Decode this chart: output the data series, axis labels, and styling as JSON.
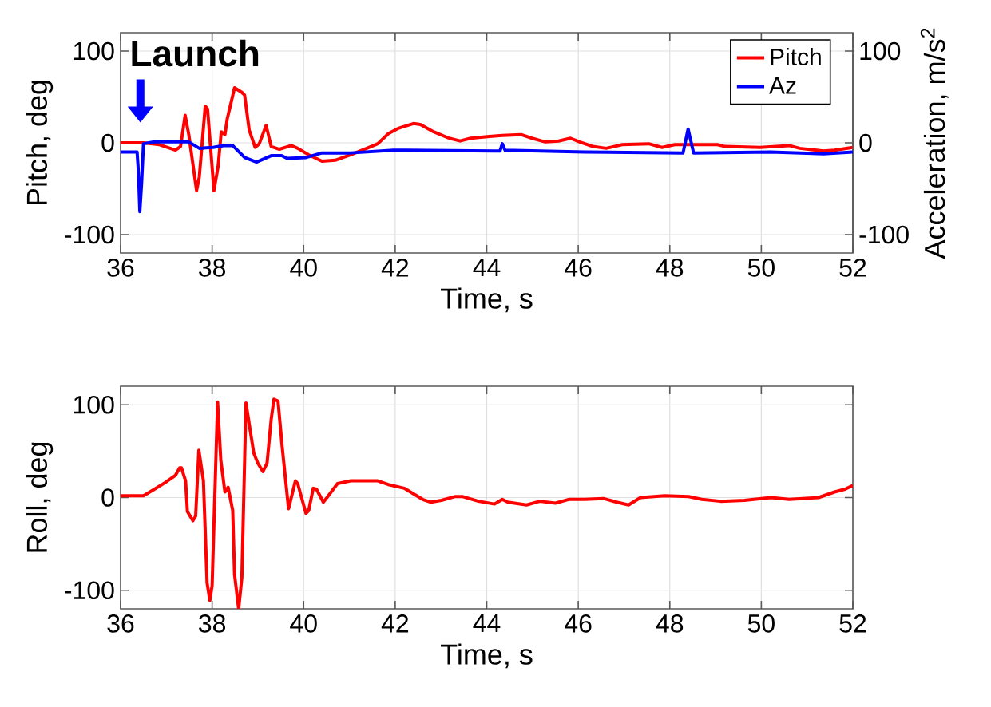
{
  "chart_data": [
    {
      "type": "line",
      "xlabel": "Time, s",
      "ylabel": "Pitch, deg",
      "y2label": "Acceleration, m/s$^{2}$",
      "xlim": [
        36,
        52
      ],
      "xticks": [
        36,
        38,
        40,
        42,
        44,
        46,
        48,
        50,
        52
      ],
      "ylim": [
        -120,
        120
      ],
      "yticks": [
        -100,
        0,
        100
      ],
      "y2lim": [
        -120,
        120
      ],
      "y2ticks": [
        -100,
        0,
        100
      ],
      "grid": true,
      "legend": "top right",
      "annotations": [
        "Launch"
      ],
      "series": [
        {
          "name": "Pitch",
          "color": "#ff0000",
          "x": [
            36,
            36.5,
            36.85,
            37.2,
            37.31,
            37.41,
            37.49,
            37.66,
            37.72,
            37.85,
            37.9,
            38.04,
            38.13,
            38.2,
            38.28,
            38.33,
            38.49,
            38.65,
            38.71,
            38.81,
            38.94,
            39.03,
            39.18,
            39.29,
            39.47,
            39.73,
            39.87,
            40.11,
            40.4,
            40.69,
            41.03,
            41.38,
            41.62,
            41.85,
            42.08,
            42.4,
            42.55,
            42.84,
            43.18,
            43.42,
            43.65,
            44.06,
            44.34,
            44.75,
            44.99,
            45.28,
            45.57,
            45.83,
            46.03,
            46.32,
            46.61,
            46.96,
            47.54,
            47.83,
            48.11,
            49.04,
            49.21,
            49.97,
            50.61,
            50.84,
            51.36,
            51.6,
            52
          ],
          "values": [
            0,
            0,
            -2,
            -8,
            -4,
            30,
            9,
            -52,
            -37,
            40,
            37,
            -52,
            -26,
            12,
            9,
            26,
            60,
            55,
            52,
            14,
            -5,
            -1,
            19,
            -4,
            -7,
            -3,
            -6,
            -13,
            -20,
            -19,
            -13,
            -6,
            -1,
            10,
            16,
            21,
            20,
            12,
            5,
            2,
            5,
            7,
            8,
            9,
            5,
            1,
            2,
            5,
            1,
            -4,
            -6,
            -2,
            -1,
            -5,
            -2,
            -2,
            -4,
            -5,
            -3,
            -6,
            -9,
            -8,
            -5
          ]
        },
        {
          "name": "Az",
          "color": "#0000ff",
          "axis": "y2",
          "x": [
            36,
            36.36,
            36.39,
            36.42,
            36.46,
            36.5,
            36.74,
            37.26,
            37.49,
            37.72,
            38.02,
            38.25,
            38.45,
            38.71,
            38.97,
            39.29,
            39.52,
            39.64,
            40.05,
            40.4,
            41.03,
            41.96,
            44.17,
            44.29,
            44.34,
            44.4,
            46.14,
            48.29,
            48.4,
            48.52,
            50.2,
            51.36,
            52
          ],
          "values": [
            -10,
            -10,
            -32,
            -75,
            -43,
            -1,
            1,
            1,
            1,
            -6,
            -5,
            -3,
            -3,
            -16,
            -21,
            -14,
            -14,
            -17,
            -16,
            -11,
            -11,
            -8,
            -9,
            -9,
            -1,
            -8,
            -10,
            -11,
            15,
            -11,
            -10,
            -12,
            -10
          ]
        }
      ]
    },
    {
      "type": "line",
      "xlabel": "Time, s",
      "ylabel": "Roll, deg",
      "xlim": [
        36,
        52
      ],
      "xticks": [
        36,
        38,
        40,
        42,
        44,
        46,
        48,
        50,
        52
      ],
      "ylim": [
        -120,
        120
      ],
      "yticks": [
        -100,
        0,
        100
      ],
      "grid": true,
      "series": [
        {
          "color": "#ff0000",
          "x": [
            36,
            36.5,
            36.74,
            36.97,
            37.2,
            37.29,
            37.33,
            37.42,
            37.46,
            37.58,
            37.64,
            37.71,
            37.81,
            37.89,
            37.95,
            38.0,
            38.12,
            38.19,
            38.28,
            38.35,
            38.45,
            38.49,
            38.58,
            38.65,
            38.74,
            38.83,
            38.91,
            39.0,
            39.11,
            39.2,
            39.29,
            39.35,
            39.44,
            39.53,
            39.67,
            39.82,
            39.87,
            40.05,
            40.11,
            40.21,
            40.28,
            40.43,
            40.51,
            40.74,
            41.03,
            41.62,
            41.85,
            42.2,
            42.6,
            42.78,
            43.01,
            43.3,
            43.48,
            43.82,
            44.17,
            44.34,
            44.46,
            44.87,
            45.16,
            45.5,
            45.79,
            46.14,
            46.55,
            46.84,
            47.1,
            47.36,
            47.89,
            48.41,
            48.7,
            49.11,
            49.63,
            50.21,
            50.61,
            51.25,
            51.6,
            51.83,
            52
          ],
          "values": [
            2,
            2,
            9,
            16,
            24,
            32,
            32,
            18,
            -15,
            -25,
            -20,
            51,
            18,
            -92,
            -111,
            -95,
            103,
            40,
            6,
            11,
            -14,
            -83,
            -120,
            -86,
            102,
            73,
            48,
            37,
            28,
            37,
            84,
            106,
            104,
            55,
            -12,
            18,
            15,
            -17,
            -14,
            10,
            9,
            -5,
            0,
            15,
            18,
            18,
            14,
            10,
            -2,
            -5,
            -3,
            1,
            1,
            -4,
            -7,
            -2,
            -5,
            -8,
            -4,
            -6,
            -2,
            -2,
            -1,
            -5,
            -8,
            0,
            2,
            1,
            -2,
            -4,
            -3,
            0,
            -2,
            0,
            6,
            9,
            13
          ]
        }
      ]
    }
  ]
}
